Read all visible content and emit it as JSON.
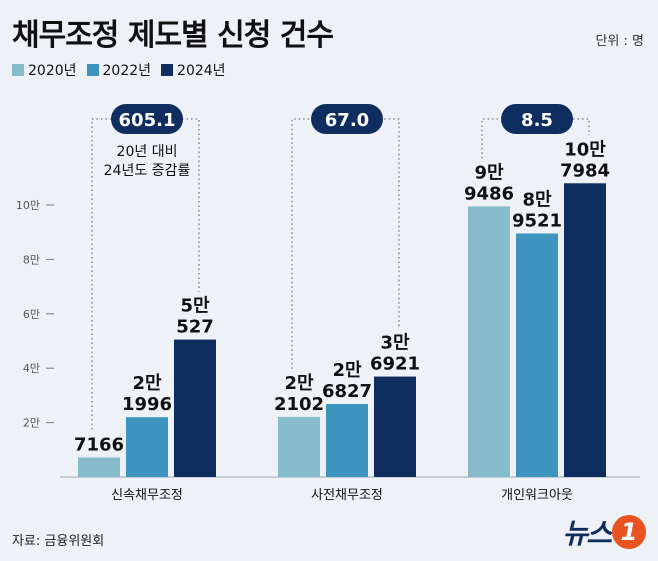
{
  "title": "채무조정 제도별 신청 건수",
  "unit": "단위 : 명",
  "source": "자료: 금융위원회",
  "logo_text": "뉴스1",
  "chart_data": {
    "type": "bar",
    "categories": [
      "신속채무조정",
      "사전채무조정",
      "개인워크아웃"
    ],
    "series": [
      {
        "name": "2020년",
        "color": "#86bccb",
        "values": [
          7166,
          22102,
          99486
        ],
        "labels": [
          [
            "",
            "7166"
          ],
          [
            "2만",
            "2102"
          ],
          [
            "9만",
            "9486"
          ]
        ]
      },
      {
        "name": "2022년",
        "color": "#3d95bf",
        "values": [
          21996,
          26827,
          89521
        ],
        "labels": [
          [
            "2만",
            "1996"
          ],
          [
            "2만",
            "6827"
          ],
          [
            "8만",
            "9521"
          ]
        ]
      },
      {
        "name": "2024년",
        "color": "#0f2d5e",
        "values": [
          50527,
          36921,
          107984
        ],
        "labels": [
          [
            "5만",
            "527"
          ],
          [
            "3만",
            "6921"
          ],
          [
            "10만",
            "7984"
          ]
        ]
      }
    ],
    "change_rates": [
      "605.1",
      "67.0",
      "8.5"
    ],
    "change_note": [
      "20년 대비",
      "24년도 증감률"
    ],
    "yticks": [
      20000,
      40000,
      60000,
      80000,
      100000
    ],
    "ytick_labels": [
      "2만",
      "4만",
      "6만",
      "8만",
      "10만"
    ],
    "ylim": [
      0,
      110000
    ],
    "grid": false,
    "legend": "top-left"
  }
}
